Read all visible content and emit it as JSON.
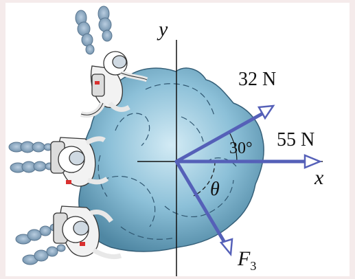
{
  "axes": {
    "y_label": "y",
    "x_label": "x"
  },
  "forces": [
    {
      "name": "force-32",
      "label": "32 N",
      "angle_deg": 30,
      "direction": "above +x"
    },
    {
      "name": "force-55",
      "label": "55 N",
      "angle_deg": 0,
      "direction": "+x"
    },
    {
      "name": "force-f3",
      "label_main": "F",
      "label_sub": "3",
      "direction": "unknown, below +x"
    }
  ],
  "angles": {
    "known": "30°",
    "unknown": "θ"
  },
  "colors": {
    "arrow": "#5560b8",
    "asteroid": "#8cc0d8",
    "asteroid_dark": "#4f87a3",
    "exhaust": "#7c9db8",
    "background": "#f5ebeb"
  },
  "scene": {
    "object": "asteroid",
    "pushers": [
      "astronaut-1",
      "astronaut-2",
      "astronaut-3"
    ]
  }
}
